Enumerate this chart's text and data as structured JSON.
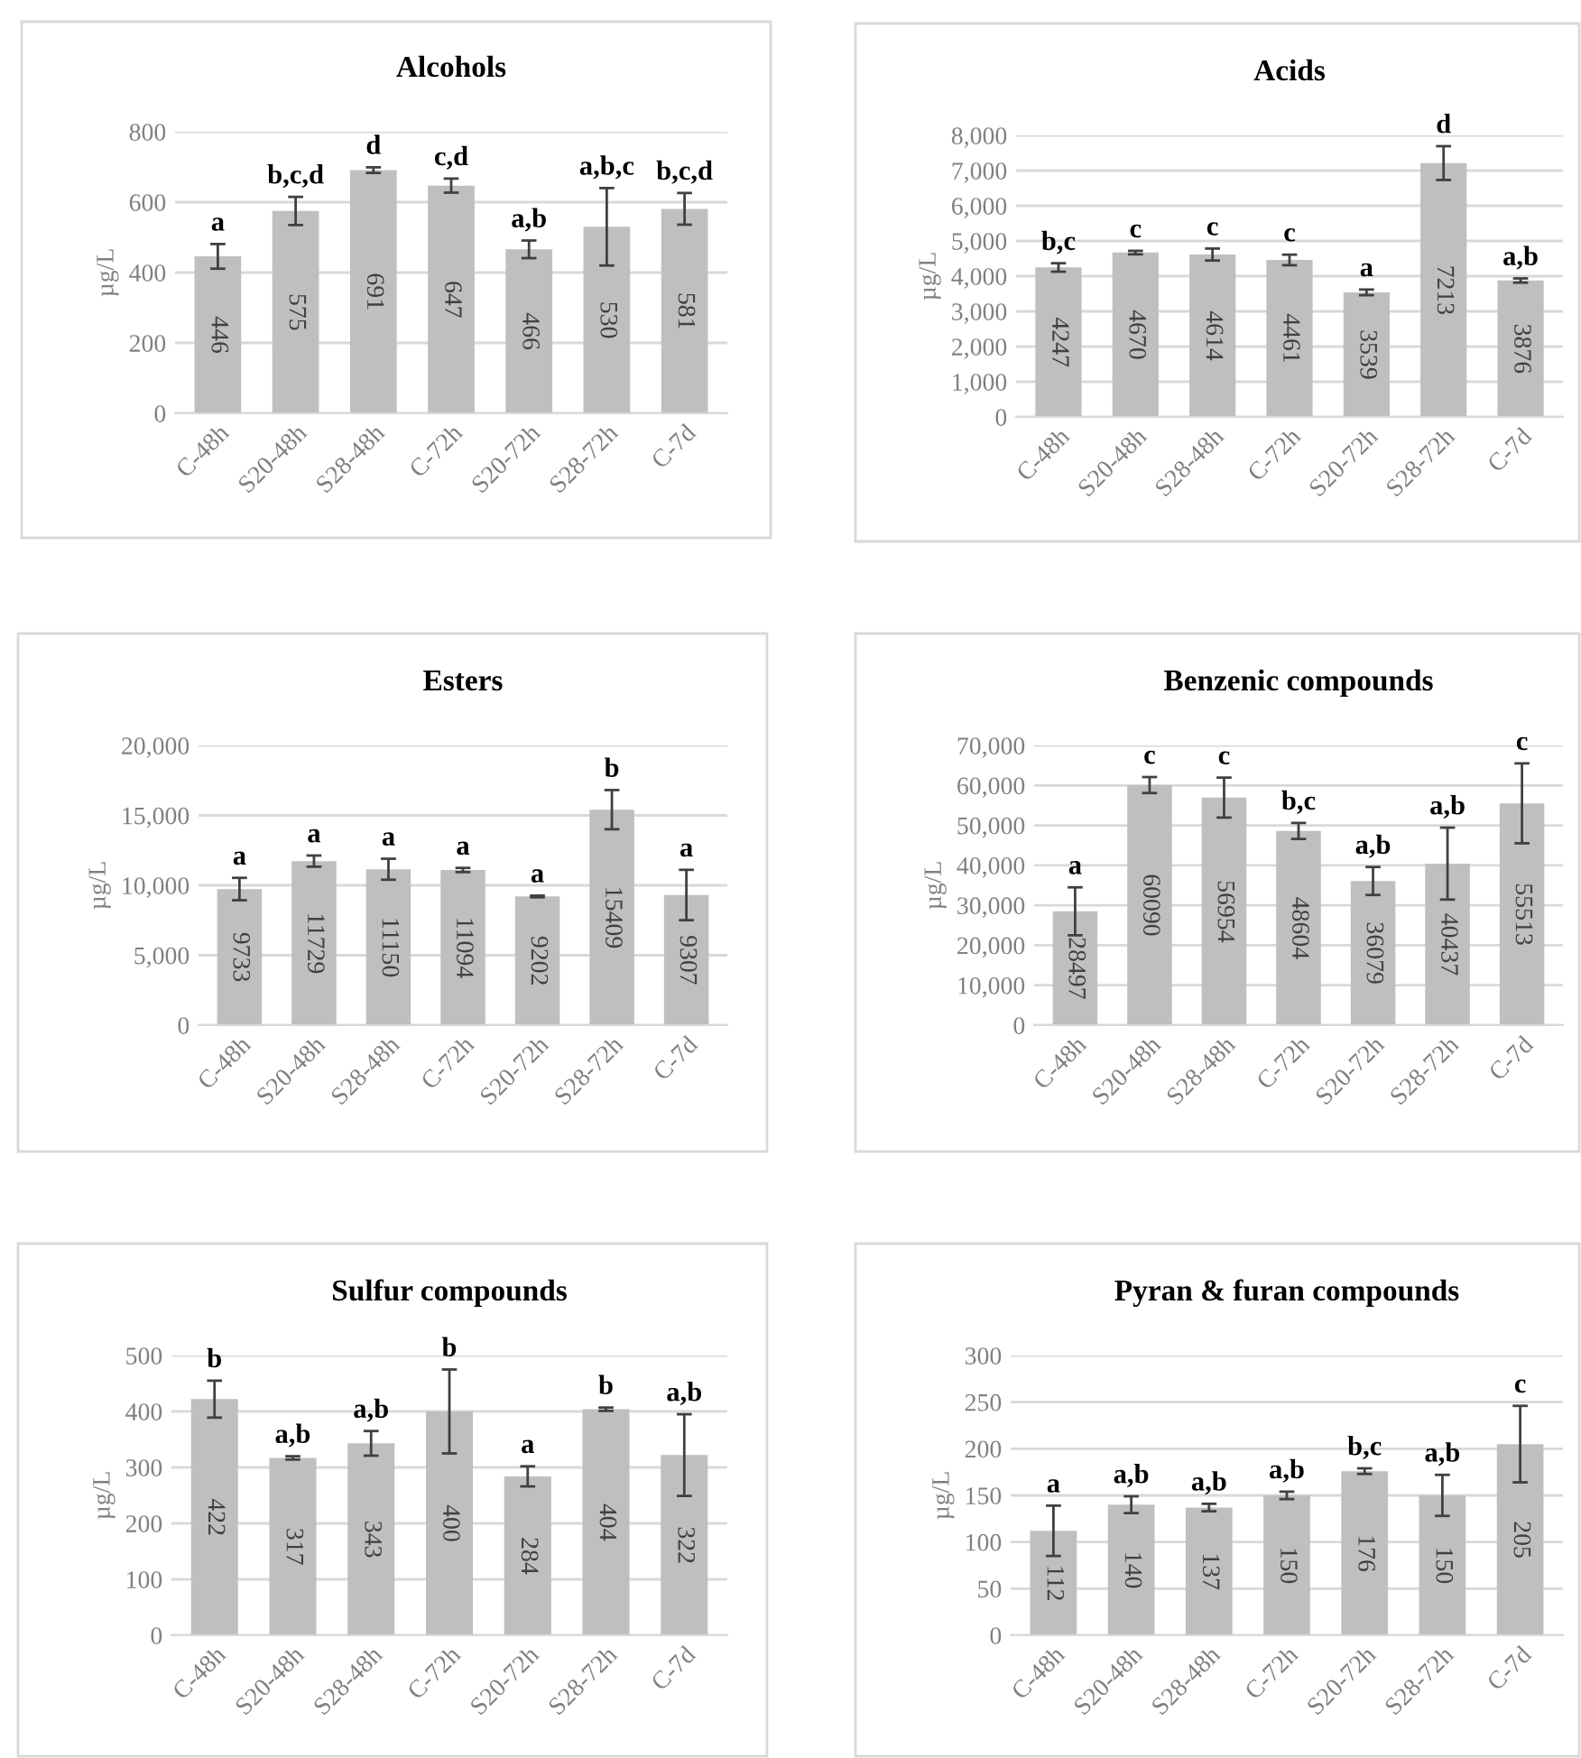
{
  "chart_data": [
    {
      "type": "bar",
      "title": "Alcohols",
      "ylabel": "µg/L",
      "categories": [
        "C-48h",
        "S20-48h",
        "S28-48h",
        "C-72h",
        "S20-72h",
        "S28-72h",
        "C-7d"
      ],
      "values": [
        446,
        575,
        691,
        647,
        466,
        530,
        581
      ],
      "errors": [
        35,
        40,
        8,
        20,
        25,
        110,
        45
      ],
      "color": "#bfbfbf",
      "data_labels": true,
      "ylim": [
        0,
        800
      ],
      "yticks": [
        0,
        200,
        400,
        600,
        800
      ],
      "grid": "y",
      "annotations": [
        {
          "text": "a",
          "x": "C-48h",
          "y": 481
        },
        {
          "text": "b,c,d",
          "x": "S20-48h",
          "y": 615
        },
        {
          "text": "d",
          "x": "S28-48h",
          "y": 699
        },
        {
          "text": "c,d",
          "x": "C-72h",
          "y": 667
        },
        {
          "text": "a,b",
          "x": "S20-72h",
          "y": 491
        },
        {
          "text": "a,b,c",
          "x": "S28-72h",
          "y": 640
        },
        {
          "text": "b,c,d",
          "x": "C-7d",
          "y": 626
        }
      ]
    },
    {
      "type": "bar",
      "title": "Acids",
      "ylabel": "µg/L",
      "categories": [
        "C-48h",
        "S20-48h",
        "S28-48h",
        "C-72h",
        "S20-72h",
        "S28-72h",
        "C-7d"
      ],
      "values": [
        4247,
        4670,
        4614,
        4461,
        3539,
        7213,
        3876
      ],
      "errors": [
        120,
        50,
        170,
        150,
        80,
        480,
        60
      ],
      "color": "#bfbfbf",
      "data_labels": true,
      "ylim": [
        0,
        8000
      ],
      "yticks": [
        0,
        {
          "value": 1000,
          "label": "1,000"
        },
        {
          "value": 2000,
          "label": "2,000"
        },
        {
          "value": 3000,
          "label": "3,000"
        },
        {
          "value": 4000,
          "label": "4,000"
        },
        {
          "value": 5000,
          "label": "5,000"
        },
        {
          "value": 6000,
          "label": "6,000"
        },
        {
          "value": 7000,
          "label": "7,000"
        },
        {
          "value": 8000,
          "label": "8,000"
        }
      ],
      "grid": "y",
      "annotations": [
        {
          "text": "b,c",
          "x": "C-48h",
          "y": 4367
        },
        {
          "text": "c",
          "x": "S20-48h",
          "y": 4720
        },
        {
          "text": "c",
          "x": "S28-48h",
          "y": 4784
        },
        {
          "text": "c",
          "x": "C-72h",
          "y": 4611
        },
        {
          "text": "a",
          "x": "S20-72h",
          "y": 3619
        },
        {
          "text": "d",
          "x": "S28-72h",
          "y": 7693
        },
        {
          "text": "a,b",
          "x": "C-7d",
          "y": 3936
        }
      ]
    },
    {
      "type": "bar",
      "title": "Esters",
      "ylabel": "µg/L",
      "categories": [
        "C-48h",
        "S20-48h",
        "S28-48h",
        "C-72h",
        "S20-72h",
        "S28-72h",
        "C-7d"
      ],
      "values": [
        9733,
        11729,
        11150,
        11094,
        9202,
        15409,
        9307
      ],
      "errors": [
        800,
        400,
        750,
        150,
        60,
        1400,
        1800
      ],
      "color": "#bfbfbf",
      "data_labels": true,
      "ylim": [
        0,
        20000
      ],
      "yticks": [
        0,
        {
          "value": 5000,
          "label": "5,000"
        },
        {
          "value": 10000,
          "label": "10,000"
        },
        {
          "value": 15000,
          "label": "15,000"
        },
        {
          "value": 20000,
          "label": "20,000"
        }
      ],
      "grid": "y",
      "annotations": [
        {
          "text": "a",
          "x": "C-48h",
          "y": 10533
        },
        {
          "text": "a",
          "x": "S20-48h",
          "y": 12129
        },
        {
          "text": "a",
          "x": "S28-48h",
          "y": 11900
        },
        {
          "text": "a",
          "x": "C-72h",
          "y": 11244
        },
        {
          "text": "a",
          "x": "S20-72h",
          "y": 9262
        },
        {
          "text": "b",
          "x": "S28-72h",
          "y": 16809
        },
        {
          "text": "a",
          "x": "C-7d",
          "y": 11107
        }
      ]
    },
    {
      "type": "bar",
      "title": "Benzenic compounds",
      "ylabel": "µg/L",
      "categories": [
        "C-48h",
        "S20-48h",
        "S28-48h",
        "C-72h",
        "S20-72h",
        "S28-72h",
        "C-7d"
      ],
      "values": [
        28497,
        60090,
        56954,
        48604,
        36079,
        40437,
        55513
      ],
      "errors": [
        6000,
        2000,
        5000,
        2000,
        3500,
        9000,
        10000
      ],
      "color": "#bfbfbf",
      "data_labels": true,
      "ylim": [
        0,
        70000
      ],
      "yticks": [
        0,
        {
          "value": 10000,
          "label": "10,000"
        },
        {
          "value": 20000,
          "label": "20,000"
        },
        {
          "value": 30000,
          "label": "30,000"
        },
        {
          "value": 40000,
          "label": "40,000"
        },
        {
          "value": 50000,
          "label": "50,000"
        },
        {
          "value": 60000,
          "label": "60,000"
        },
        {
          "value": 70000,
          "label": "70,000"
        }
      ],
      "grid": "y",
      "annotations": [
        {
          "text": "a",
          "x": "C-48h",
          "y": 34497
        },
        {
          "text": "c",
          "x": "S20-48h",
          "y": 62090
        },
        {
          "text": "c",
          "x": "S28-48h",
          "y": 61954
        },
        {
          "text": "b,c",
          "x": "C-72h",
          "y": 50604
        },
        {
          "text": "a,b",
          "x": "S20-72h",
          "y": 39579
        },
        {
          "text": "a,b",
          "x": "S28-72h",
          "y": 49437
        },
        {
          "text": "c",
          "x": "C-7d",
          "y": 65513
        }
      ]
    },
    {
      "type": "bar",
      "title": "Sulfur compounds",
      "ylabel": "µg/L",
      "categories": [
        "C-48h",
        "S20-48h",
        "S28-48h",
        "C-72h",
        "S20-72h",
        "S28-72h",
        "C-7d"
      ],
      "values": [
        422,
        317,
        343,
        400,
        284,
        404,
        322
      ],
      "errors": [
        33,
        3,
        22,
        75,
        18,
        3,
        73
      ],
      "color": "#bfbfbf",
      "data_labels": true,
      "ylim": [
        0,
        500
      ],
      "yticks": [
        0,
        100,
        200,
        300,
        400,
        500
      ],
      "grid": "y",
      "annotations": [
        {
          "text": "b",
          "x": "C-48h",
          "y": 455
        },
        {
          "text": "a,b",
          "x": "S20-48h",
          "y": 320
        },
        {
          "text": "a,b",
          "x": "S28-48h",
          "y": 365
        },
        {
          "text": "b",
          "x": "C-72h",
          "y": 475
        },
        {
          "text": "a",
          "x": "S20-72h",
          "y": 302
        },
        {
          "text": "b",
          "x": "S28-72h",
          "y": 407
        },
        {
          "text": "a,b",
          "x": "C-7d",
          "y": 395
        }
      ]
    },
    {
      "type": "bar",
      "title": "Pyran & furan compounds",
      "ylabel": "µg/L",
      "categories": [
        "C-48h",
        "S20-48h",
        "S28-48h",
        "C-72h",
        "S20-72h",
        "S28-72h",
        "C-7d"
      ],
      "values": [
        112,
        140,
        137,
        150,
        176,
        150,
        205
      ],
      "errors": [
        27,
        9,
        4,
        4,
        3,
        22,
        41
      ],
      "color": "#bfbfbf",
      "data_labels": true,
      "ylim": [
        0,
        300
      ],
      "yticks": [
        0,
        50,
        100,
        150,
        200,
        250,
        300
      ],
      "grid": "y",
      "annotations": [
        {
          "text": "a",
          "x": "C-48h",
          "y": 139
        },
        {
          "text": "a,b",
          "x": "S20-48h",
          "y": 149
        },
        {
          "text": "a,b",
          "x": "S28-48h",
          "y": 141
        },
        {
          "text": "a,b",
          "x": "C-72h",
          "y": 154
        },
        {
          "text": "b,c",
          "x": "S20-72h",
          "y": 179
        },
        {
          "text": "a,b",
          "x": "S28-72h",
          "y": 172
        },
        {
          "text": "c",
          "x": "C-7d",
          "y": 246
        }
      ]
    }
  ]
}
